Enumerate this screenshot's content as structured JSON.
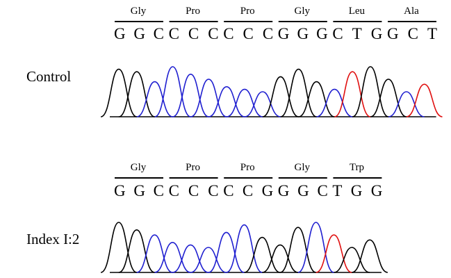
{
  "panels": [
    {
      "label": "Control",
      "codons": [
        {
          "amino_acid": "Gly",
          "bases": "GGC"
        },
        {
          "amino_acid": "Pro",
          "bases": "CCC"
        },
        {
          "amino_acid": "Pro",
          "bases": "CCC"
        },
        {
          "amino_acid": "Gly",
          "bases": "GGG"
        },
        {
          "amino_acid": "Leu",
          "bases": "CTG"
        },
        {
          "amino_acid": "Ala",
          "bases": "GCT"
        }
      ]
    },
    {
      "label": "Index I:2",
      "codons": [
        {
          "amino_acid": "Gly",
          "bases": "GGC"
        },
        {
          "amino_acid": "Pro",
          "bases": "CCC"
        },
        {
          "amino_acid": "Pro",
          "bases": "CCG"
        },
        {
          "amino_acid": "Gly",
          "bases": "GGC"
        },
        {
          "amino_acid": "Trp",
          "bases": "TGG"
        }
      ]
    }
  ]
}
